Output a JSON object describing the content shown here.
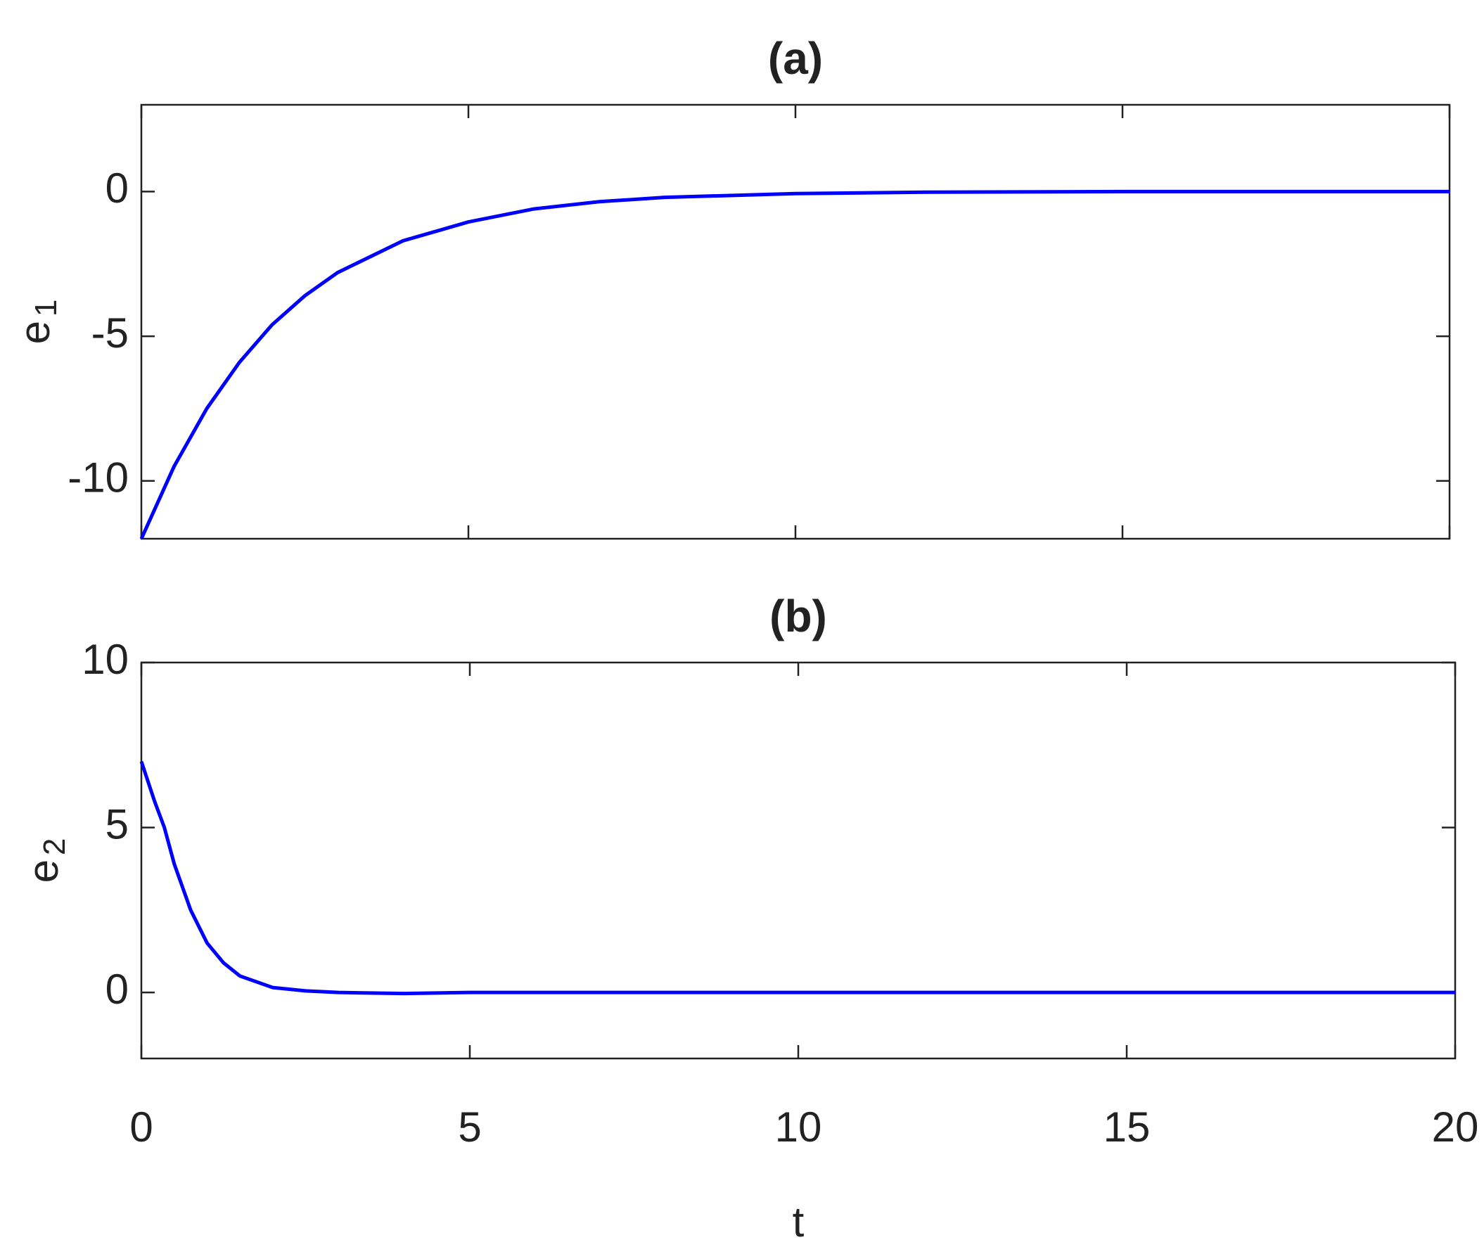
{
  "chart_data": [
    {
      "type": "line",
      "title": "(a)",
      "ylabel": {
        "text": "e",
        "subscript": "1"
      },
      "x": [
        0,
        0.5,
        1,
        1.5,
        2,
        2.5,
        3,
        4,
        5,
        6,
        7,
        8,
        10,
        12,
        15,
        20
      ],
      "series": [
        {
          "color": "#0000ff",
          "values": [
            -12,
            -9.5,
            -7.5,
            -5.9,
            -4.6,
            -3.6,
            -2.8,
            -1.7,
            -1.05,
            -0.6,
            -0.35,
            -0.2,
            -0.07,
            -0.02,
            0,
            0
          ]
        }
      ],
      "xlim": [
        0,
        20
      ],
      "xticks": [
        0,
        5,
        10,
        15,
        20
      ],
      "ylim": [
        -12,
        3
      ],
      "yticks": [
        -10,
        -5,
        0
      ]
    },
    {
      "type": "line",
      "title": "(b)",
      "ylabel": {
        "text": "e",
        "subscript": "2"
      },
      "xlabel": "t",
      "x": [
        0,
        0.2,
        0.35,
        0.5,
        0.75,
        1,
        1.25,
        1.5,
        2,
        2.5,
        3,
        4,
        5,
        10,
        15,
        20
      ],
      "series": [
        {
          "color": "#0000ff",
          "values": [
            7,
            5.8,
            5,
            3.9,
            2.5,
            1.5,
            0.9,
            0.5,
            0.15,
            0.05,
            0,
            -0.03,
            0,
            0,
            0,
            0
          ]
        }
      ],
      "xlim": [
        0,
        20
      ],
      "xticks": [
        0,
        5,
        10,
        15,
        20
      ],
      "ylim": [
        -2,
        10
      ],
      "yticks": [
        0,
        5,
        10
      ]
    }
  ]
}
